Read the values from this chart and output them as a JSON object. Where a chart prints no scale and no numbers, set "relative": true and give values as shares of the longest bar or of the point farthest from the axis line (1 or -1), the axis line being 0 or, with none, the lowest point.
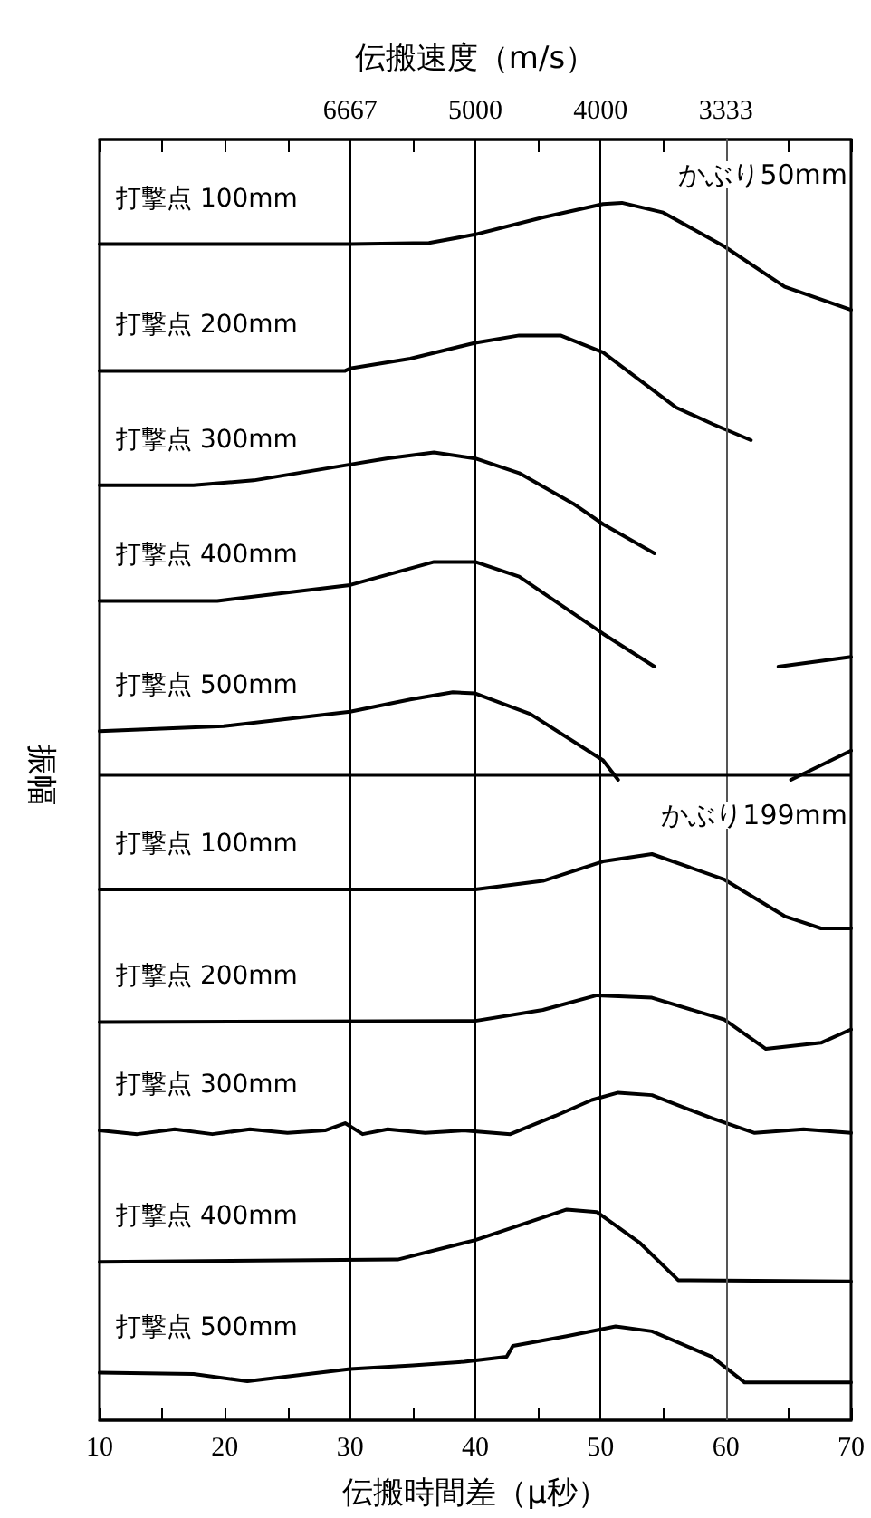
{
  "chart_data": {
    "type": "line",
    "relative": true,
    "xlabel": "伝搬時間差（μ秒）",
    "x2label": "伝搬速度（m/s）",
    "ylabel": "振幅",
    "annotations": [
      "かぶり50mm",
      "かぶり199mm",
      "6667",
      "5000",
      "4000",
      "3333"
    ],
    "xlim": [
      10,
      70
    ],
    "xticks": [
      10,
      {
        "value": 15,
        "label": null
      },
      20,
      {
        "value": 25,
        "label": null
      },
      30,
      {
        "value": 35,
        "label": null
      },
      40,
      {
        "value": 45,
        "label": null
      },
      50,
      {
        "value": 55,
        "label": null
      },
      60,
      {
        "value": 65,
        "label": null
      },
      70
    ],
    "grid": false,
    "legend": false,
    "marker": "none",
    "line_style": "solid",
    "ref_lines": [
      {
        "axis": "x",
        "value": 30,
        "color": "#000000"
      },
      {
        "axis": "x",
        "value": 40,
        "color": "#000000"
      },
      {
        "axis": "x",
        "value": 50,
        "color": "#000000"
      },
      {
        "axis": "x",
        "value": 60,
        "color": "#555555"
      },
      {
        "axis": "y",
        "value": 0.526,
        "color": "#000000"
      }
    ],
    "series": [
      {
        "name": "打撃点 100mm",
        "color": "#000000",
        "x": [
          10,
          30,
          36.3,
          40,
          45.4,
          50.2,
          51.7,
          55,
          59.9,
          64.7,
          70
        ],
        "values": [
          0.966,
          0.966,
          0.967,
          0.974,
          0.988,
          0.999,
          1,
          0.992,
          0.964,
          0.931,
          0.912
        ]
      },
      {
        "name": "打撃点 200mm",
        "color": "#000000",
        "x": [
          10,
          29.6,
          30,
          34.8,
          40,
          43.5,
          46.8,
          50.2,
          56,
          59,
          62
        ],
        "values": [
          0.862,
          0.862,
          0.864,
          0.872,
          0.885,
          0.891,
          0.891,
          0.877,
          0.832,
          0.818,
          0.805
        ]
      },
      {
        "name": "打撃点 300mm",
        "color": "#000000",
        "x": [
          10,
          17.5,
          22.3,
          30,
          32.9,
          36.7,
          40,
          43.5,
          47.8,
          50.2,
          54.3
        ],
        "values": [
          0.768,
          0.768,
          0.772,
          0.785,
          0.79,
          0.795,
          0.79,
          0.778,
          0.753,
          0.736,
          0.712
        ]
      },
      {
        "name": "打撃点 400mm",
        "color": "#000000",
        "x": [
          10,
          19.4,
          30,
          36.7,
          40,
          43.5,
          50.2,
          54.3,
          59,
          64.2,
          70
        ],
        "values": [
          0.673,
          0.673,
          0.686,
          0.705,
          0.705,
          0.693,
          0.646,
          0.619,
          null,
          0.619,
          0.627
        ]
      },
      {
        "name": "打撃点 500mm",
        "color": "#000000",
        "x": [
          10,
          19.9,
          30,
          34.8,
          38.2,
          40,
          44.4,
          50.2,
          51.4,
          58,
          65.2,
          70
        ],
        "values": [
          0.566,
          0.57,
          0.582,
          0.592,
          0.598,
          0.597,
          0.58,
          0.542,
          0.526,
          null,
          0.526,
          0.55
        ]
      },
      {
        "name": "打撃点 100mm",
        "color": "#000000",
        "x": [
          10,
          40,
          45.4,
          50.2,
          54.1,
          59.9,
          64.7,
          67.6,
          70
        ],
        "values": [
          0.436,
          0.436,
          0.443,
          0.459,
          0.465,
          0.444,
          0.414,
          0.404,
          0.404
        ]
      },
      {
        "name": "打撃点 200mm",
        "color": "#000000",
        "x": [
          10,
          40,
          45.4,
          49.7,
          54.1,
          59.9,
          63.2,
          67.6,
          70
        ],
        "values": [
          0.327,
          0.328,
          0.337,
          0.349,
          0.347,
          0.329,
          0.305,
          0.31,
          0.321
        ]
      },
      {
        "name": "打撃点 300mm",
        "color": "#000000",
        "x": [
          10,
          13,
          16,
          19,
          22,
          25,
          28,
          29.6,
          31,
          33,
          36,
          39,
          42.8,
          46.4,
          49.3,
          51.4,
          54.1,
          58.9,
          62.3,
          66.2,
          70
        ],
        "values": [
          0.238,
          0.235,
          0.239,
          0.235,
          0.239,
          0.236,
          0.238,
          0.244,
          0.235,
          0.239,
          0.236,
          0.238,
          0.235,
          0.25,
          0.263,
          0.269,
          0.267,
          0.248,
          0.236,
          0.239,
          0.236
        ]
      },
      {
        "name": "打撃点 400mm",
        "color": "#000000",
        "x": [
          10,
          33.8,
          40,
          47.3,
          49.7,
          53.1,
          56.2,
          70
        ],
        "values": [
          0.13,
          0.132,
          0.148,
          0.173,
          0.171,
          0.146,
          0.115,
          0.114
        ]
      },
      {
        "name": "打撃点 500mm",
        "color": "#000000",
        "x": [
          10,
          17.5,
          21.8,
          30,
          35,
          39.1,
          42.5,
          43,
          47.3,
          51.2,
          54.1,
          58.9,
          61.5,
          70
        ],
        "values": [
          0.039,
          0.038,
          0.032,
          0.042,
          0.045,
          0.048,
          0.052,
          0.061,
          0.069,
          0.077,
          0.073,
          0.052,
          0.031,
          0.031
        ]
      }
    ]
  }
}
